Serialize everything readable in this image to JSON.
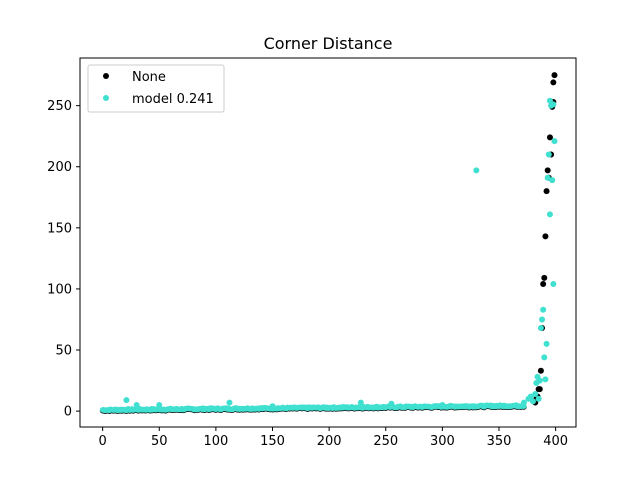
{
  "chart_data": {
    "type": "scatter",
    "title": "Corner Distance",
    "xlabel": "",
    "ylabel": "",
    "xlim": [
      -20,
      418
    ],
    "ylim": [
      -13,
      289
    ],
    "xticks": [
      0,
      50,
      100,
      150,
      200,
      250,
      300,
      350,
      400
    ],
    "yticks": [
      0,
      50,
      100,
      150,
      200,
      250
    ],
    "grid": false,
    "legend_position": "top-left",
    "series": [
      {
        "name": "None",
        "color": "#000000",
        "points": [
          [
            382,
            7
          ],
          [
            383,
            10
          ],
          [
            384,
            12
          ],
          [
            385,
            18
          ],
          [
            386,
            18
          ],
          [
            387,
            33
          ],
          [
            388,
            68
          ],
          [
            389,
            104
          ],
          [
            390,
            109
          ],
          [
            391,
            143
          ],
          [
            392,
            180
          ],
          [
            393,
            197
          ],
          [
            394,
            191
          ],
          [
            395,
            224
          ],
          [
            396,
            210
          ],
          [
            397,
            249
          ],
          [
            398,
            253
          ],
          [
            398,
            269
          ],
          [
            399,
            275
          ]
        ]
      },
      {
        "name": "model 0.241",
        "color": "#40e0d0",
        "points": [
          [
            21,
            9
          ],
          [
            30,
            5
          ],
          [
            50,
            5
          ],
          [
            112,
            7
          ],
          [
            150,
            4
          ],
          [
            185,
            3
          ],
          [
            228,
            7
          ],
          [
            255,
            6
          ],
          [
            300,
            5
          ],
          [
            330,
            197
          ],
          [
            372,
            7
          ],
          [
            376,
            10
          ],
          [
            378,
            12
          ],
          [
            380,
            8
          ],
          [
            382,
            14
          ],
          [
            383,
            23
          ],
          [
            384,
            28
          ],
          [
            385,
            10
          ],
          [
            386,
            25
          ],
          [
            387,
            68
          ],
          [
            388,
            75
          ],
          [
            389,
            83
          ],
          [
            390,
            44
          ],
          [
            391,
            26
          ],
          [
            392,
            55
          ],
          [
            393,
            191
          ],
          [
            394,
            210
          ],
          [
            395,
            161
          ],
          [
            395,
            254
          ],
          [
            396,
            250
          ],
          [
            397,
            189
          ],
          [
            398,
            104
          ],
          [
            399,
            221
          ],
          [
            398,
            251
          ]
        ]
      }
    ],
    "band": {
      "series_index": 1,
      "x_start": 0,
      "x_end": 372,
      "y_start": 1,
      "y_end": 4.5,
      "jitter": 1.2
    }
  }
}
